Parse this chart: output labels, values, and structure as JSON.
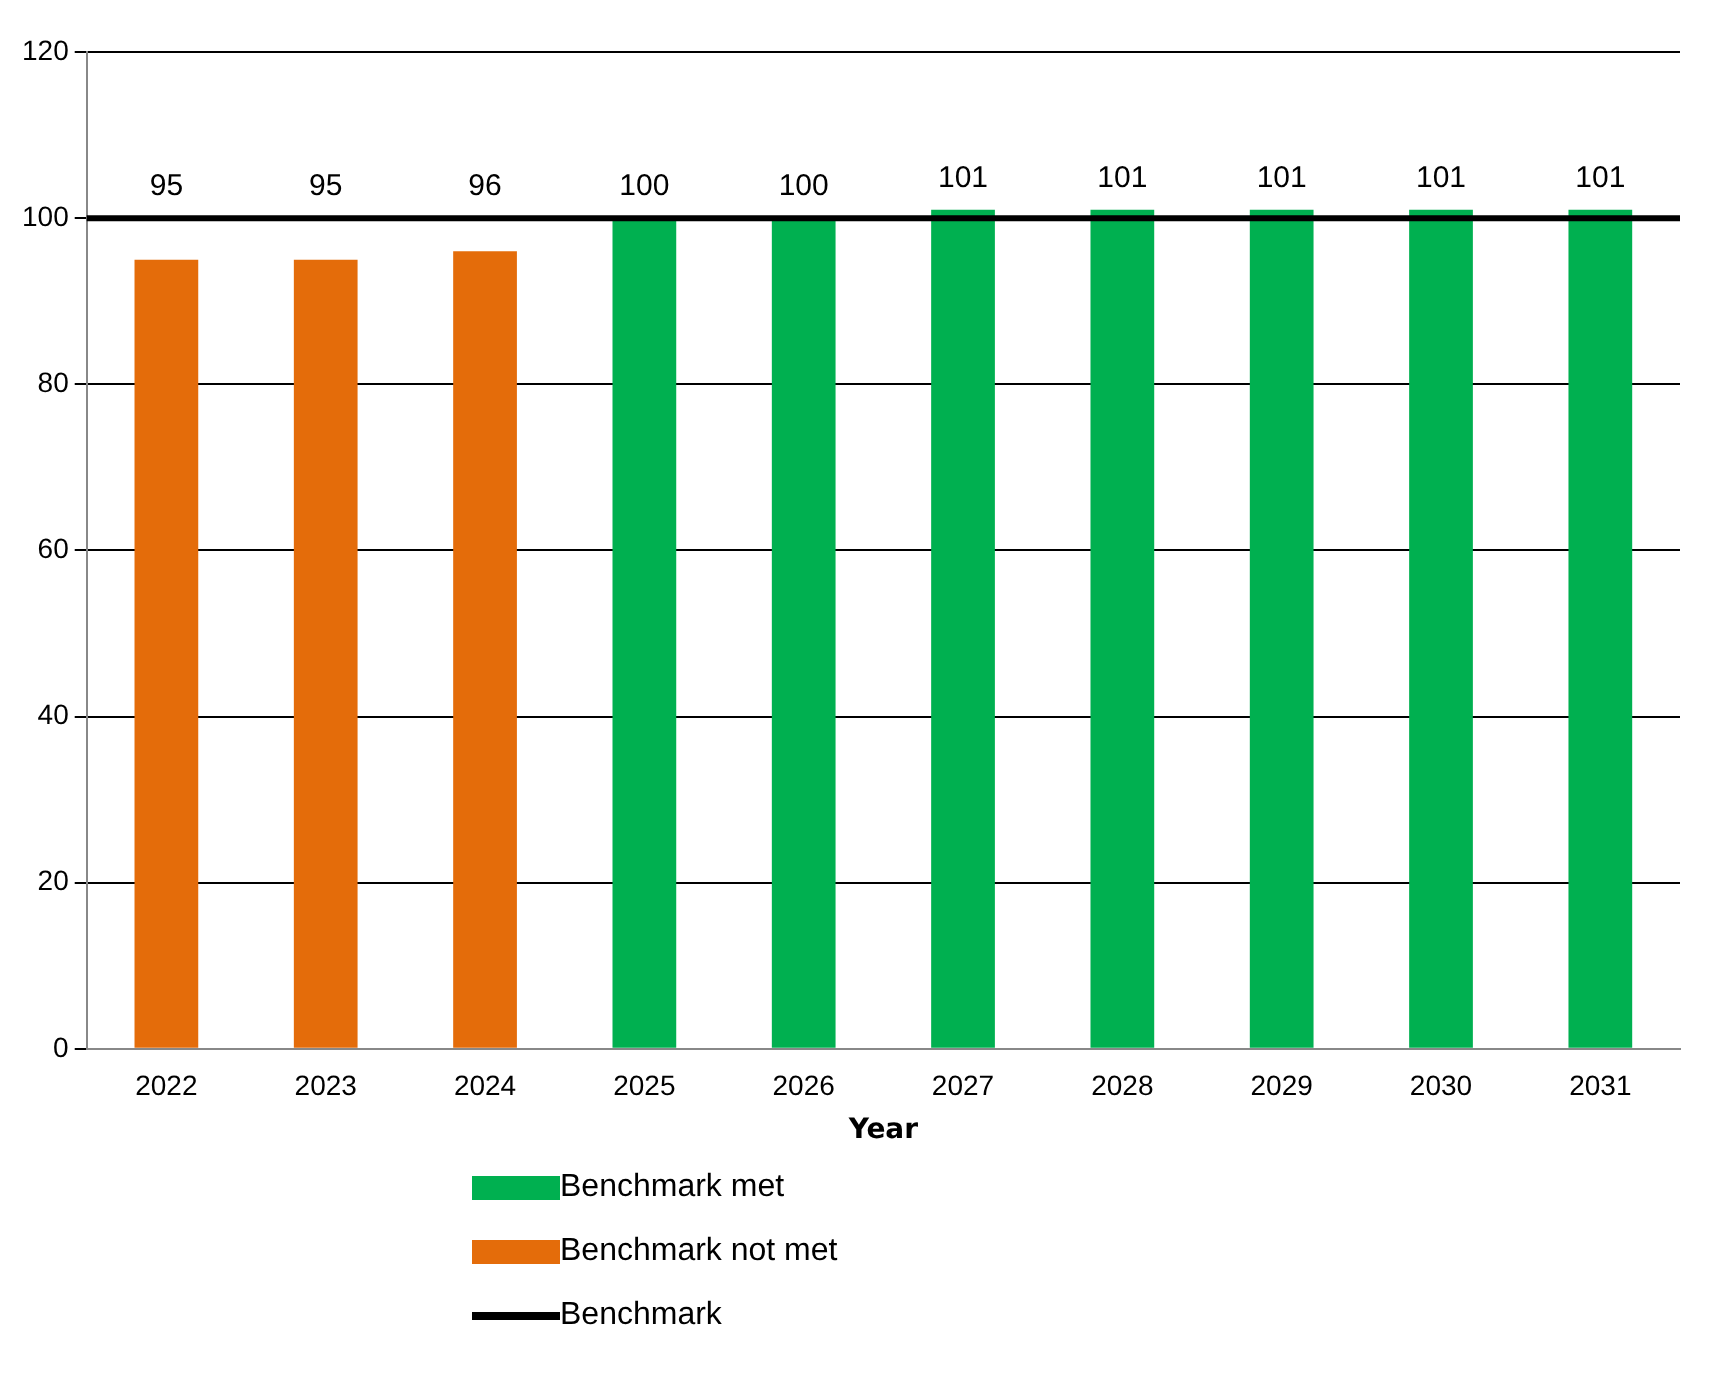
{
  "chart_data": {
    "type": "bar",
    "xlabel": "Year",
    "categories": [
      "2022",
      "2023",
      "2024",
      "2025",
      "2026",
      "2027",
      "2028",
      "2029",
      "2030",
      "2031"
    ],
    "series": [
      {
        "name": "Benchmark met",
        "color": "#00b050",
        "values": [
          null,
          null,
          null,
          100,
          100,
          101,
          101,
          101,
          101,
          101
        ]
      },
      {
        "name": "Benchmark not met",
        "color": "#e46c0a",
        "values": [
          95,
          95,
          96,
          null,
          null,
          null,
          null,
          null,
          null,
          null
        ]
      }
    ],
    "ylim": [
      0,
      120
    ],
    "yticks": [
      0,
      20,
      40,
      60,
      80,
      100,
      120
    ],
    "grid": "y",
    "data_labels": true,
    "legend": "bottom",
    "ref_lines": [
      {
        "axis": "y",
        "value": 100,
        "label": "Benchmark",
        "color": "#000000",
        "line_style": "solid"
      }
    ]
  }
}
